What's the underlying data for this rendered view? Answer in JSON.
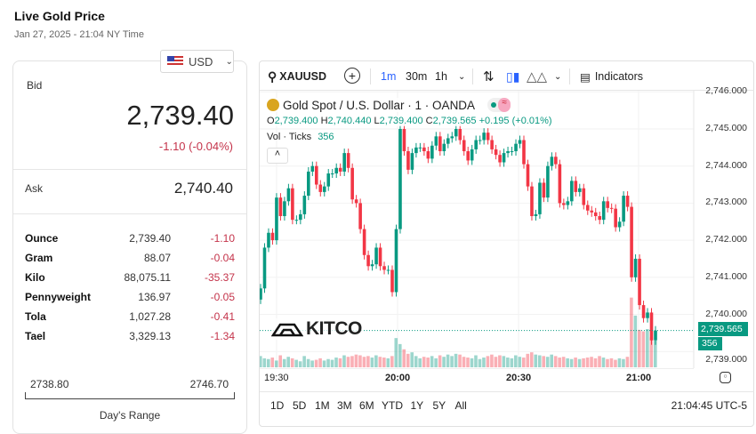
{
  "header": {
    "title": "Live Gold Price",
    "date": "Jan 27, 2025 - 21:04 NY Time"
  },
  "currency": {
    "selected": "USD",
    "icon": "us-flag-icon"
  },
  "quote": {
    "bid_label": "Bid",
    "bid": "2,739.40",
    "change": "-1.10 (-0.04%)",
    "ask_label": "Ask",
    "ask": "2,740.40"
  },
  "units": [
    {
      "name": "Ounce",
      "value": "2,739.40",
      "change": "-1.10"
    },
    {
      "name": "Gram",
      "value": "88.07",
      "change": "-0.04"
    },
    {
      "name": "Kilo",
      "value": "88,075.11",
      "change": "-35.37"
    },
    {
      "name": "Pennyweight",
      "value": "136.97",
      "change": "-0.05"
    },
    {
      "name": "Tola",
      "value": "1,027.28",
      "change": "-0.41"
    },
    {
      "name": "Tael",
      "value": "3,329.13",
      "change": "-1.34"
    }
  ],
  "day_range": {
    "low": "2738.80",
    "high": "2746.70",
    "label": "Day's Range"
  },
  "toolbar": {
    "symbol": "XAUUSD",
    "intervals": [
      "1m",
      "30m",
      "1h"
    ],
    "active_interval": "1m",
    "indicators": "Indicators"
  },
  "legend": {
    "title": "Gold Spot / U.S. Dollar · 1 · OANDA",
    "o": "2,739.400",
    "h": "2,740.440",
    "l": "2,739.400",
    "c": "2,739.565",
    "chg": "+0.195 (+0.01%)",
    "vol_label": "Vol · Ticks",
    "vol": "356"
  },
  "ranges": [
    "1D",
    "5D",
    "1M",
    "3M",
    "6M",
    "YTD",
    "1Y",
    "5Y",
    "All"
  ],
  "clock": "21:04:45 UTC-5",
  "logo": "KITCO",
  "colors": {
    "up": "#089981",
    "down": "#f23645",
    "accent": "#2962ff",
    "negative": "#c4334a"
  },
  "chart_data": {
    "type": "candlestick",
    "interval": "1 minute",
    "y_ticks": [
      "2,746.000",
      "2,745.000",
      "2,744.000",
      "2,743.000",
      "2,742.000",
      "2,741.000",
      "2,740.000",
      "2,739.000"
    ],
    "x_ticks": [
      "19:30",
      "20:00",
      "20:30",
      "21:00"
    ],
    "ylim": [
      2738.8,
      2746.0
    ],
    "last_price": "2,739.565",
    "last_volume": "356",
    "first_open": 2740.4,
    "closes": [
      2740.7,
      2741.8,
      2742.2,
      2742.0,
      2743.15,
      2742.65,
      2743.05,
      2743.4,
      2742.55,
      2742.55,
      2742.7,
      2743.2,
      2743.85,
      2744.0,
      2743.5,
      2743.3,
      2743.45,
      2743.8,
      2743.8,
      2743.95,
      2743.85,
      2744.35,
      2743.95,
      2743.1,
      2743.0,
      2742.3,
      2741.6,
      2741.3,
      2741.35,
      2741.8,
      2741.3,
      2741.2,
      2741.2,
      2740.6,
      2742.3,
      2745.0,
      2744.4,
      2743.9,
      2744.35,
      2744.5,
      2744.5,
      2744.4,
      2744.2,
      2744.55,
      2744.8,
      2744.4,
      2744.6,
      2744.75,
      2744.8,
      2745.0,
      2744.7,
      2744.4,
      2744.15,
      2744.45,
      2744.7,
      2744.7,
      2744.9,
      2744.7,
      2744.45,
      2744.3,
      2744.1,
      2744.35,
      2744.4,
      2744.4,
      2744.6,
      2744.7,
      2744.05,
      2743.45,
      2742.65,
      2742.7,
      2743.55,
      2743.15,
      2744.0,
      2744.25,
      2744.05,
      2743.0,
      2742.95,
      2743.05,
      2743.6,
      2743.3,
      2743.4,
      2742.95,
      2742.8,
      2742.75,
      2742.65,
      2742.55,
      2743.05,
      2742.87,
      2742.85,
      2742.35,
      2742.5,
      2743.2,
      2742.9,
      2741.0,
      2741.5,
      2740.25,
      2739.9,
      2740.05,
      2739.3,
      2739.565
    ],
    "volumes": [
      150,
      120,
      110,
      130,
      90,
      160,
      110,
      140,
      120,
      100,
      80,
      150,
      110,
      90,
      100,
      120,
      90,
      110,
      100,
      130,
      120,
      160,
      140,
      150,
      170,
      160,
      140,
      150,
      130,
      160,
      140,
      130,
      120,
      150,
      390,
      310,
      240,
      180,
      200,
      150,
      120,
      140,
      130,
      150,
      120,
      160,
      140,
      170,
      150,
      180,
      170,
      140,
      130,
      120,
      160,
      110,
      130,
      150,
      170,
      140,
      160,
      150,
      130,
      120,
      160,
      140,
      130,
      180,
      200,
      170,
      160,
      150,
      140,
      170,
      150,
      130,
      140,
      120,
      110,
      130,
      110,
      120,
      130,
      140,
      120,
      150,
      130,
      110,
      120,
      100,
      120,
      110,
      140,
      930,
      690,
      500,
      480,
      510,
      400,
      356
    ]
  }
}
